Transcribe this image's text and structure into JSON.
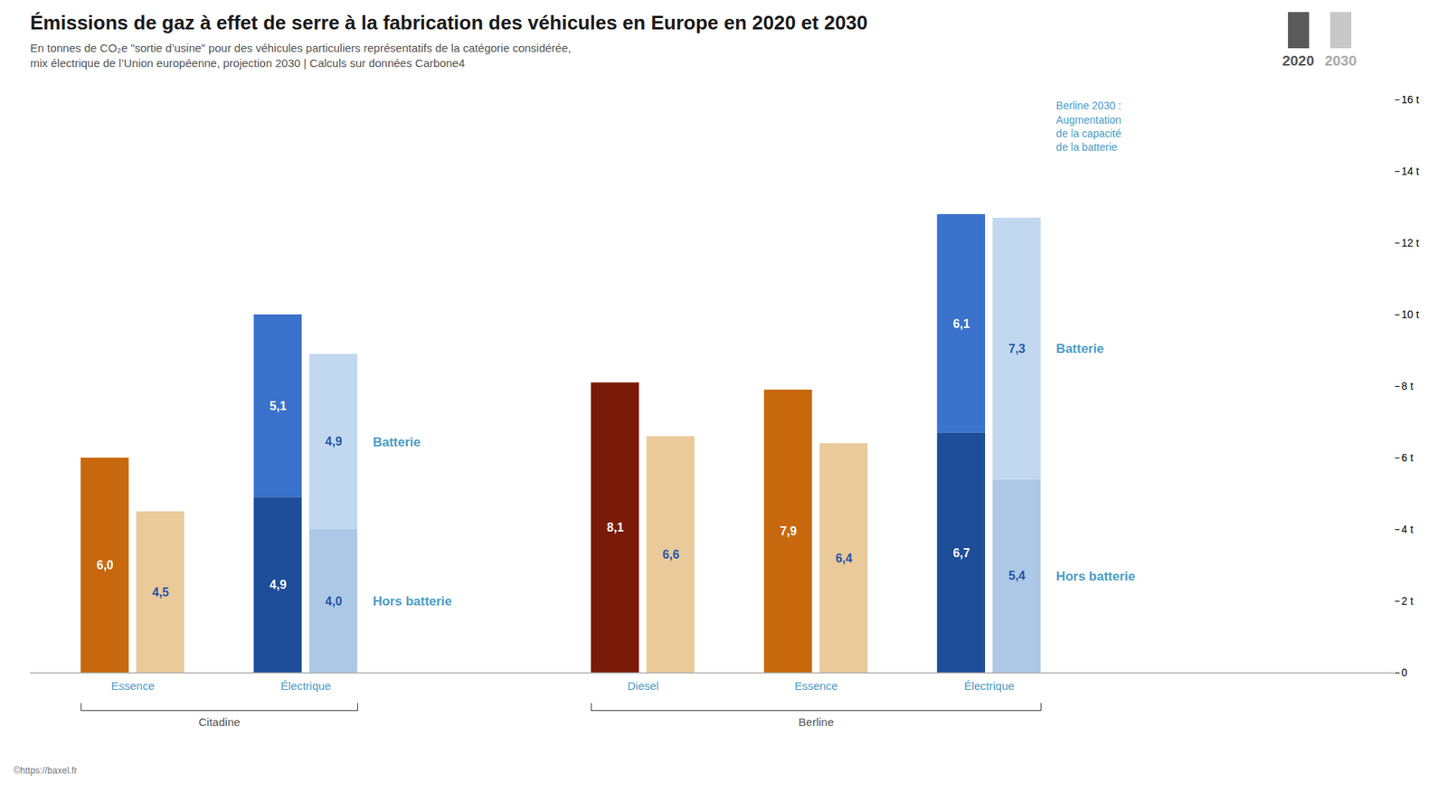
{
  "chart_data": {
    "type": "bar",
    "stacked": true,
    "data_labels": true,
    "grid": false,
    "legend": "top",
    "title": "Émissions de gaz à effet de serre à la fabrication des véhicules en Europe en 2020 et 2030",
    "subtitle": [
      "En tonnes de CO₂e \"sortie d’usine\" pour des véhicules particuliers représentatifs de la catégorie considérée,",
      "mix électrique de l’Union européenne, projection 2030  |  Calculs sur données Carbone4"
    ],
    "caption": "©https://baxel.fr",
    "categories": [
      "Essence",
      "Électrique",
      "Diesel",
      "Essence",
      "Électrique"
    ],
    "category_groups": [
      "Citadine",
      "Citadine",
      "Berline",
      "Berline",
      "Berline"
    ],
    "series": [
      {
        "name": "2020",
        "color": "#5A5A5A",
        "segments": [
          {
            "name": "Hors batterie",
            "values": [
              6.0,
              4.9,
              8.1,
              7.9,
              6.7
            ],
            "colors": [
              "#C8680E",
              "#1E4D99",
              "#7A1A08",
              "#C8680E",
              "#1E4D99"
            ],
            "value_labels": [
              "6,0",
              "4,9",
              "8,1",
              "7,9",
              "6,7"
            ]
          },
          {
            "name": "Batterie",
            "values": [
              0.0,
              5.1,
              0.0,
              0.0,
              6.1
            ],
            "colors": [
              "#C8680E",
              "#3A72CC",
              "#7A1A08",
              "#C8680E",
              "#3A72CC"
            ],
            "value_labels": [
              null,
              "5,1",
              null,
              null,
              "6,1"
            ]
          }
        ]
      },
      {
        "name": "2030",
        "color": "#C8C8C8",
        "segments": [
          {
            "name": "Hors batterie",
            "values": [
              4.5,
              4.0,
              6.6,
              6.4,
              5.4
            ],
            "colors": [
              "#EAC99A",
              "#ADC8E6",
              "#EAC99A",
              "#EAC99A",
              "#ADC8E6"
            ],
            "value_labels": [
              "4,5",
              "4,0",
              "6,6",
              "6,4",
              "5,4"
            ]
          },
          {
            "name": "Batterie",
            "values": [
              0.0,
              4.9,
              0.0,
              0.0,
              7.3
            ],
            "colors": [
              "#EAC99A",
              "#C2D8F0",
              "#EAC99A",
              "#EAC99A",
              "#C2D8F0"
            ],
            "value_labels": [
              null,
              "4,9",
              null,
              null,
              "7,3"
            ]
          }
        ]
      }
    ],
    "annotation": [
      "Berline 2030 :",
      "Augmentation",
      "de la capacité",
      "de la batterie"
    ],
    "ylim": [
      0,
      16
    ],
    "yticks": [
      0,
      {
        "value": 2,
        "label": "2 t"
      },
      {
        "value": 4,
        "label": "4 t"
      },
      {
        "value": 6,
        "label": "6 t"
      },
      {
        "value": 8,
        "label": "8 t"
      },
      {
        "value": 10,
        "label": "10 t"
      },
      {
        "value": 12,
        "label": "12 t"
      },
      {
        "value": 14,
        "label": "14 t"
      },
      {
        "value": 16,
        "label": "16 t"
      }
    ]
  }
}
